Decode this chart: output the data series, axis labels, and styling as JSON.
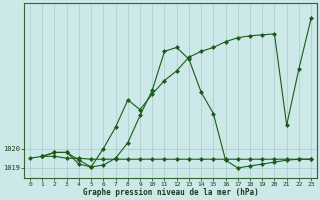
{
  "title": "Graphe pression niveau de la mer (hPa)",
  "background_color": "#cce8e8",
  "grid_color": "#aacccc",
  "line_color": "#1a5c1a",
  "xlim": [
    -0.5,
    23.5
  ],
  "xticks": [
    0,
    1,
    2,
    3,
    4,
    5,
    6,
    7,
    8,
    9,
    10,
    11,
    12,
    13,
    14,
    15,
    16,
    17,
    18,
    19,
    20,
    21,
    22,
    23
  ],
  "ylim": [
    1018.5,
    1027.5
  ],
  "ytick_labels": [
    "1019",
    "1020"
  ],
  "ytick_values": [
    1019,
    1020
  ],
  "series1_x": [
    0,
    1,
    2,
    3,
    4,
    5,
    6,
    7,
    8,
    9,
    10,
    11,
    12,
    13,
    14,
    15,
    16,
    17,
    18,
    19,
    20,
    21,
    22,
    23
  ],
  "series1_y": [
    1019.5,
    1019.6,
    1019.6,
    1019.5,
    1019.5,
    1019.45,
    1019.45,
    1019.45,
    1019.45,
    1019.45,
    1019.45,
    1019.45,
    1019.45,
    1019.45,
    1019.45,
    1019.45,
    1019.45,
    1019.45,
    1019.45,
    1019.45,
    1019.45,
    1019.45,
    1019.45,
    1019.45
  ],
  "series2_x": [
    1,
    2,
    3,
    4,
    5,
    6,
    7,
    8,
    9,
    10,
    11,
    12,
    13,
    14,
    15,
    16,
    17,
    18,
    19,
    20,
    21,
    22,
    23
  ],
  "series2_y": [
    1019.6,
    1019.8,
    1019.8,
    1019.2,
    1019.05,
    1019.15,
    1019.5,
    1020.3,
    1021.7,
    1023.0,
    1025.0,
    1025.2,
    1024.6,
    1022.9,
    1021.8,
    1019.4,
    1019.0,
    1019.1,
    1019.2,
    1019.3,
    1019.4,
    1019.45,
    1019.45
  ],
  "series3_x": [
    1,
    2,
    3,
    4,
    5,
    6,
    7,
    8,
    9,
    10,
    11,
    12,
    13,
    14,
    15,
    16,
    17,
    18,
    19,
    20,
    21,
    22,
    23
  ],
  "series3_y": [
    1019.6,
    1019.8,
    1019.8,
    1019.4,
    1019.05,
    1020.0,
    1021.1,
    1022.5,
    1022.0,
    1022.8,
    1023.5,
    1024.0,
    1024.7,
    1025.0,
    1025.2,
    1025.5,
    1025.7,
    1025.8,
    1025.85,
    1025.9,
    1021.2,
    1024.1,
    1026.7
  ]
}
